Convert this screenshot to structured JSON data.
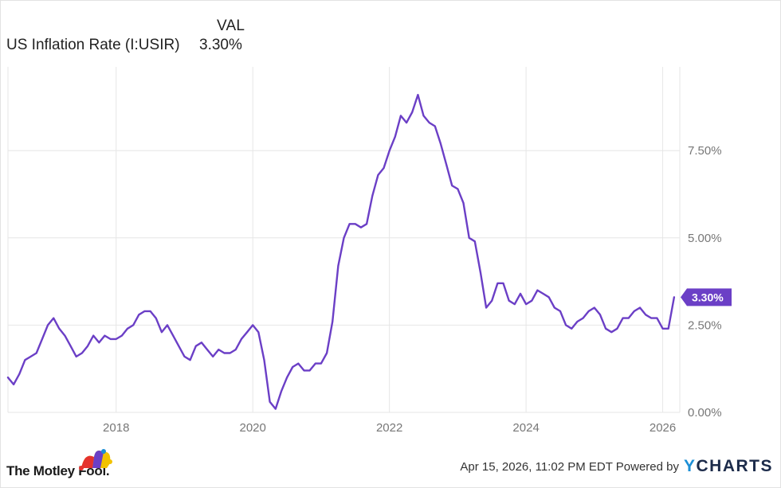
{
  "legend": {
    "column_header": "VAL",
    "series_name": "US Inflation Rate (I:USIR)",
    "series_value": "3.30%"
  },
  "colors": {
    "line": "#6b3fc6",
    "grid": "#e6e6e6",
    "tick_text": "#777777",
    "badge_bg": "#6b3fc6"
  },
  "current_value_label": "3.30%",
  "chart_data": {
    "type": "line",
    "title": "",
    "xlabel": "",
    "ylabel": "",
    "x_ticks": [
      "2018",
      "2020",
      "2022",
      "2024",
      "2026"
    ],
    "y_ticks": [
      "0.00%",
      "2.50%",
      "5.00%",
      "7.50%"
    ],
    "ylim": [
      0,
      9.9
    ],
    "xlim": [
      "2016-06",
      "2026-04"
    ],
    "grid": true,
    "legend_position": "top-left",
    "series": [
      {
        "name": "US Inflation Rate (I:USIR)",
        "x": [
          "2016-06",
          "2016-07",
          "2016-08",
          "2016-09",
          "2016-10",
          "2016-11",
          "2016-12",
          "2017-01",
          "2017-02",
          "2017-03",
          "2017-04",
          "2017-05",
          "2017-06",
          "2017-07",
          "2017-08",
          "2017-09",
          "2017-10",
          "2017-11",
          "2017-12",
          "2018-01",
          "2018-02",
          "2018-03",
          "2018-04",
          "2018-05",
          "2018-06",
          "2018-07",
          "2018-08",
          "2018-09",
          "2018-10",
          "2018-11",
          "2018-12",
          "2019-01",
          "2019-02",
          "2019-03",
          "2019-04",
          "2019-05",
          "2019-06",
          "2019-07",
          "2019-08",
          "2019-09",
          "2019-10",
          "2019-11",
          "2019-12",
          "2020-01",
          "2020-02",
          "2020-03",
          "2020-04",
          "2020-05",
          "2020-06",
          "2020-07",
          "2020-08",
          "2020-09",
          "2020-10",
          "2020-11",
          "2020-12",
          "2021-01",
          "2021-02",
          "2021-03",
          "2021-04",
          "2021-05",
          "2021-06",
          "2021-07",
          "2021-08",
          "2021-09",
          "2021-10",
          "2021-11",
          "2021-12",
          "2022-01",
          "2022-02",
          "2022-03",
          "2022-04",
          "2022-05",
          "2022-06",
          "2022-07",
          "2022-08",
          "2022-09",
          "2022-10",
          "2022-11",
          "2022-12",
          "2023-01",
          "2023-02",
          "2023-03",
          "2023-04",
          "2023-05",
          "2023-06",
          "2023-07",
          "2023-08",
          "2023-09",
          "2023-10",
          "2023-11",
          "2023-12",
          "2024-01",
          "2024-02",
          "2024-03",
          "2024-04",
          "2024-05",
          "2024-06",
          "2024-07",
          "2024-08",
          "2024-09",
          "2024-10",
          "2024-11",
          "2024-12",
          "2025-01",
          "2025-02",
          "2025-03",
          "2025-04",
          "2025-05",
          "2025-06",
          "2025-07",
          "2025-08",
          "2025-09",
          "2025-10",
          "2025-11",
          "2025-12",
          "2026-01",
          "2026-02",
          "2026-03"
        ],
        "values": [
          1.0,
          0.8,
          1.1,
          1.5,
          1.6,
          1.7,
          2.1,
          2.5,
          2.7,
          2.4,
          2.2,
          1.9,
          1.6,
          1.7,
          1.9,
          2.2,
          2.0,
          2.2,
          2.1,
          2.1,
          2.2,
          2.4,
          2.5,
          2.8,
          2.9,
          2.9,
          2.7,
          2.3,
          2.5,
          2.2,
          1.9,
          1.6,
          1.5,
          1.9,
          2.0,
          1.8,
          1.6,
          1.8,
          1.7,
          1.7,
          1.8,
          2.1,
          2.3,
          2.5,
          2.3,
          1.5,
          0.3,
          0.1,
          0.6,
          1.0,
          1.3,
          1.4,
          1.2,
          1.2,
          1.4,
          1.4,
          1.7,
          2.6,
          4.2,
          5.0,
          5.4,
          5.4,
          5.3,
          5.4,
          6.2,
          6.8,
          7.0,
          7.5,
          7.9,
          8.5,
          8.3,
          8.6,
          9.1,
          8.5,
          8.3,
          8.2,
          7.7,
          7.1,
          6.5,
          6.4,
          6.0,
          5.0,
          4.9,
          4.0,
          3.0,
          3.2,
          3.7,
          3.7,
          3.2,
          3.1,
          3.4,
          3.1,
          3.2,
          3.5,
          3.4,
          3.3,
          3.0,
          2.9,
          2.5,
          2.4,
          2.6,
          2.7,
          2.9,
          3.0,
          2.8,
          2.4,
          2.3,
          2.4,
          2.7,
          2.7,
          2.9,
          3.0,
          2.8,
          2.7,
          2.7,
          2.4,
          2.4,
          3.3
        ]
      }
    ]
  },
  "footer": {
    "brand": "The Motley Fool.",
    "timestamp": "Apr 15, 2026, 11:02 PM EDT Powered by",
    "ycharts_y": "Y",
    "ycharts_rest": "CHARTS"
  }
}
